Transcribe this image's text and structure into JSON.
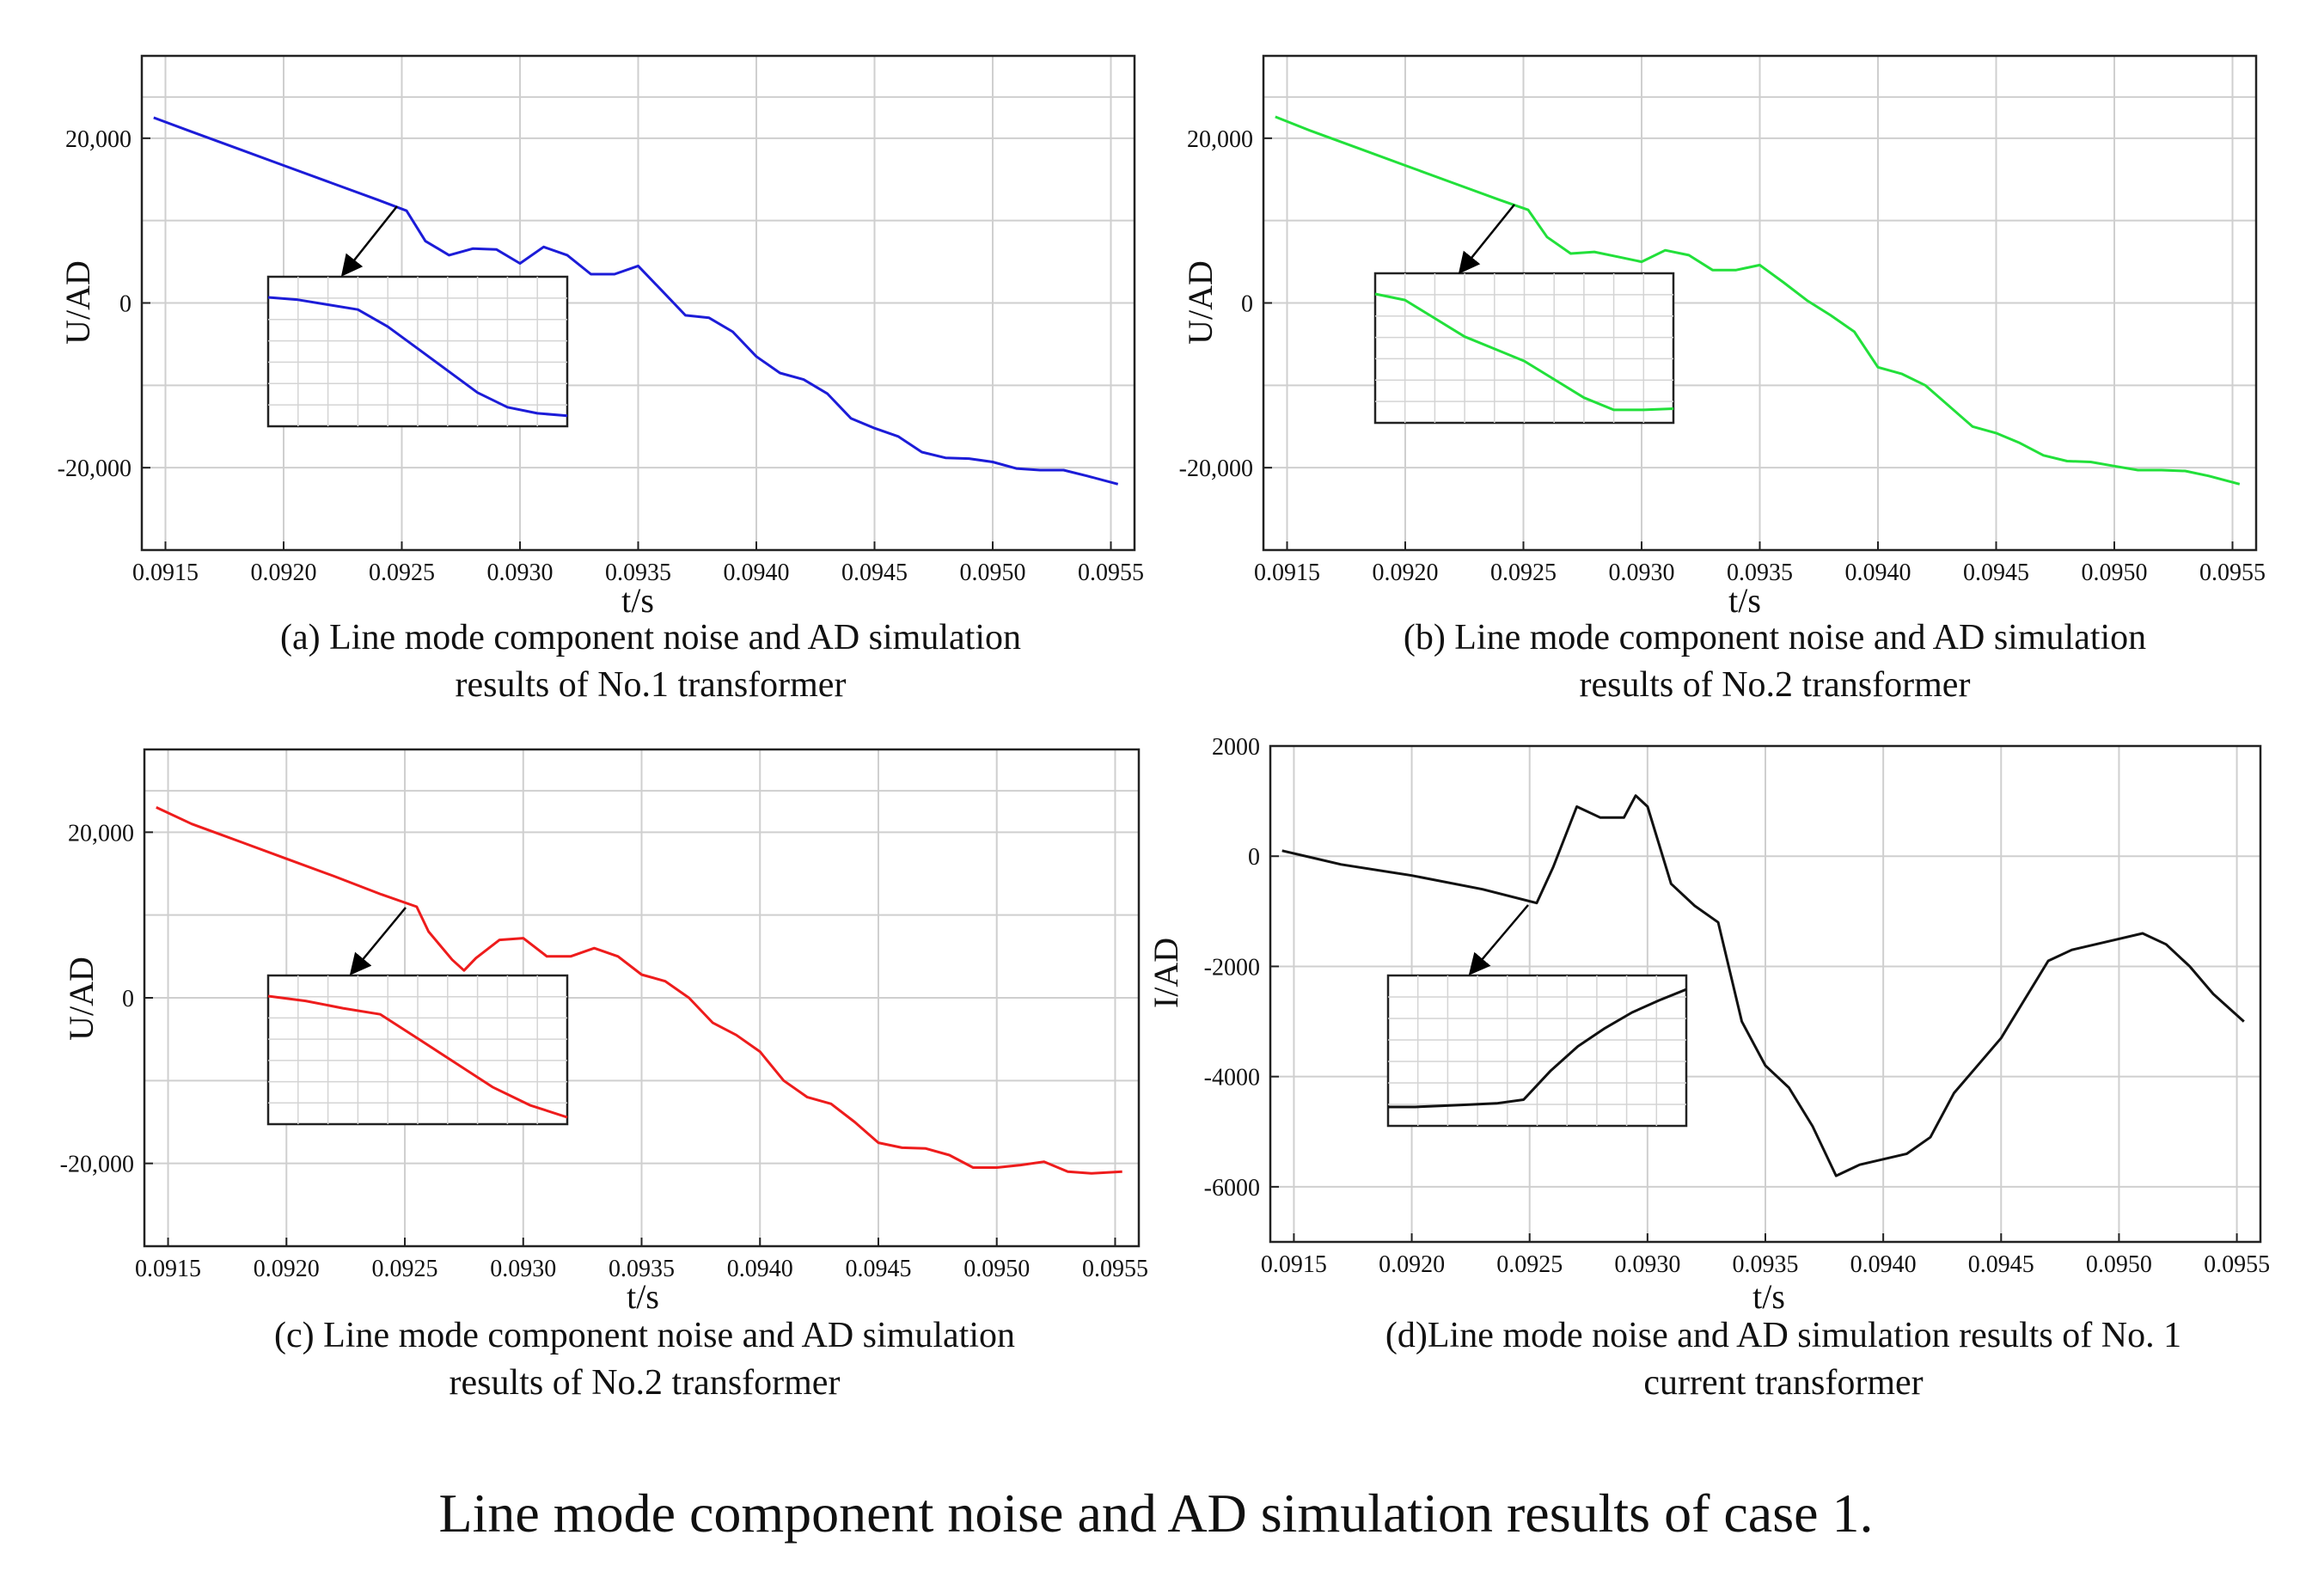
{
  "figure_caption": "Line mode component noise and AD simulation results of case 1.",
  "chart_data": [
    {
      "type": "line",
      "panel": "a",
      "caption_line1": "(a) Line mode component noise and AD simulation",
      "caption_line2": "results of No.1 transformer",
      "xlabel": "t/s",
      "ylabel": "U/AD",
      "xlim": [
        0.0914,
        0.0956
      ],
      "ylim": [
        -30000,
        30000
      ],
      "xticks": [
        0.0915,
        0.092,
        0.0925,
        0.093,
        0.0935,
        0.094,
        0.0945,
        0.095,
        0.0955
      ],
      "xtick_labels": [
        "0.0915",
        "0.0920",
        "0.0925",
        "0.0930",
        "0.0935",
        "0.0940",
        "0.0945",
        "0.0950",
        "0.0955"
      ],
      "yticks": [
        20000,
        0,
        -20000
      ],
      "ytick_labels": [
        "20,000",
        "0",
        "-20,000"
      ],
      "ygrid": [
        25000,
        20000,
        10000,
        0,
        -10000,
        -20000
      ],
      "grid": true,
      "color": "#1c1cd8",
      "inset": true,
      "series": [
        {
          "name": "No.1 transformer",
          "x": [
            0.09145,
            0.0916,
            0.0918,
            0.092,
            0.0922,
            0.0924,
            0.09252,
            0.0926,
            0.0927,
            0.0928,
            0.0929,
            0.093,
            0.0931,
            0.0932,
            0.0933,
            0.0934,
            0.0935,
            0.0936,
            0.0937,
            0.0938,
            0.0939,
            0.094,
            0.0941,
            0.0942,
            0.0943,
            0.0944,
            0.0945,
            0.0946,
            0.0947,
            0.0948,
            0.0949,
            0.095,
            0.0951,
            0.0952,
            0.0953,
            0.0954,
            0.09553
          ],
          "values": [
            22500,
            20900,
            18800,
            16700,
            14600,
            12500,
            11200,
            7500,
            5800,
            6600,
            6500,
            4800,
            6800,
            5800,
            3500,
            3500,
            4500,
            1500,
            -1500,
            -1800,
            -3500,
            -6500,
            -8500,
            -9300,
            -11000,
            -14000,
            -15200,
            -16200,
            -18100,
            -18800,
            -18900,
            -19300,
            -20100,
            -20300,
            -20300,
            -21000,
            -22000
          ]
        }
      ],
      "inset_series": [
        0.0,
        -0.02,
        -0.06,
        -0.1,
        -0.24,
        -0.42,
        -0.6,
        -0.78,
        -0.9,
        -0.95,
        -0.97
      ]
    },
    {
      "type": "line",
      "panel": "b",
      "caption_line1": "(b) Line mode component noise and AD simulation",
      "caption_line2": "results of No.2 transformer",
      "xlabel": "t/s",
      "ylabel": "U/AD",
      "xlim": [
        0.0914,
        0.0956
      ],
      "ylim": [
        -30000,
        30000
      ],
      "xticks": [
        0.0915,
        0.092,
        0.0925,
        0.093,
        0.0935,
        0.094,
        0.0945,
        0.095,
        0.0955
      ],
      "xtick_labels": [
        "0.0915",
        "0.0920",
        "0.0925",
        "0.0930",
        "0.0935",
        "0.0940",
        "0.0945",
        "0.0950",
        "0.0955"
      ],
      "yticks": [
        20000,
        0,
        -20000
      ],
      "ytick_labels": [
        "20,000",
        "0",
        "-20,000"
      ],
      "ygrid": [
        25000,
        20000,
        10000,
        0,
        -10000,
        -20000
      ],
      "grid": true,
      "color": "#22e03a",
      "inset": true,
      "series": [
        {
          "name": "No.2 transformer",
          "x": [
            0.09145,
            0.0916,
            0.0918,
            0.092,
            0.0922,
            0.0924,
            0.09252,
            0.0926,
            0.0927,
            0.0928,
            0.0929,
            0.093,
            0.0931,
            0.0932,
            0.0933,
            0.0934,
            0.0935,
            0.0936,
            0.0937,
            0.0938,
            0.0939,
            0.094,
            0.0941,
            0.0942,
            0.0943,
            0.0944,
            0.0945,
            0.0946,
            0.0947,
            0.0948,
            0.0949,
            0.095,
            0.0951,
            0.0952,
            0.0953,
            0.0954,
            0.09553
          ],
          "values": [
            22600,
            20900,
            18800,
            16700,
            14600,
            12500,
            11300,
            8000,
            6000,
            6200,
            5600,
            5000,
            6400,
            5800,
            4000,
            4000,
            4600,
            2500,
            300,
            -1500,
            -3500,
            -7800,
            -8600,
            -10000,
            -12500,
            -15000,
            -15800,
            -17000,
            -18500,
            -19200,
            -19300,
            -19800,
            -20300,
            -20300,
            -20400,
            -21000,
            -22000
          ]
        }
      ],
      "inset_series": [
        0.0,
        -0.05,
        -0.2,
        -0.35,
        -0.45,
        -0.55,
        -0.7,
        -0.85,
        -0.95,
        -0.95,
        -0.94
      ]
    },
    {
      "type": "line",
      "panel": "c",
      "caption_line1": "(c) Line mode component noise and AD simulation",
      "caption_line2": "results of No.2 transformer",
      "xlabel": "t/s",
      "ylabel": "U/AD",
      "xlim": [
        0.0914,
        0.0956
      ],
      "ylim": [
        -30000,
        30000
      ],
      "xticks": [
        0.0915,
        0.092,
        0.0925,
        0.093,
        0.0935,
        0.094,
        0.0945,
        0.095,
        0.0955
      ],
      "xtick_labels": [
        "0.0915",
        "0.0920",
        "0.0925",
        "0.0930",
        "0.0935",
        "0.0940",
        "0.0945",
        "0.0950",
        "0.0955"
      ],
      "yticks": [
        20000,
        0,
        -20000
      ],
      "ytick_labels": [
        "20,000",
        "0",
        "-20,000"
      ],
      "ygrid": [
        25000,
        20000,
        10000,
        0,
        -10000,
        -20000
      ],
      "grid": true,
      "color": "#ee1c1c",
      "inset": true,
      "series": [
        {
          "name": "No.2 transformer",
          "x": [
            0.09145,
            0.0916,
            0.0918,
            0.092,
            0.0922,
            0.0924,
            0.09255,
            0.0926,
            0.0927,
            0.09275,
            0.0928,
            0.0929,
            0.093,
            0.0931,
            0.0932,
            0.0933,
            0.0934,
            0.0935,
            0.0936,
            0.0937,
            0.0938,
            0.0939,
            0.094,
            0.0941,
            0.0942,
            0.0943,
            0.0944,
            0.0945,
            0.0946,
            0.0947,
            0.0948,
            0.0949,
            0.095,
            0.0951,
            0.0952,
            0.0953,
            0.0954,
            0.09553
          ],
          "values": [
            23000,
            21000,
            18900,
            16800,
            14700,
            12500,
            11000,
            8000,
            4600,
            3300,
            4800,
            7000,
            7200,
            5000,
            5000,
            6000,
            5000,
            2800,
            2000,
            0,
            -3000,
            -4500,
            -6500,
            -10000,
            -12000,
            -12800,
            -15000,
            -17500,
            -18100,
            -18200,
            -19000,
            -20500,
            -20500,
            -20200,
            -19800,
            -21000,
            -21200,
            -21000
          ]
        }
      ],
      "inset_series": [
        0.0,
        -0.04,
        -0.1,
        -0.15,
        -0.35,
        -0.55,
        -0.75,
        -0.9,
        -1.0
      ]
    },
    {
      "type": "line",
      "panel": "d",
      "caption_line1": "(d)Line mode noise and AD simulation results of No. 1",
      "caption_line2": "current transformer",
      "xlabel": "t/s",
      "ylabel": "I/AD",
      "xlim": [
        0.0914,
        0.0956
      ],
      "ylim": [
        -7000,
        2000
      ],
      "xticks": [
        0.0915,
        0.092,
        0.0925,
        0.093,
        0.0935,
        0.094,
        0.0945,
        0.095,
        0.0955
      ],
      "xtick_labels": [
        "0.0915",
        "0.0920",
        "0.0925",
        "0.0930",
        "0.0935",
        "0.0940",
        "0.0945",
        "0.0950",
        "0.0955"
      ],
      "yticks": [
        2000,
        0,
        -2000,
        -4000,
        -6000
      ],
      "ytick_labels": [
        "2000",
        "0",
        "-2000",
        "-4000",
        "-6000"
      ],
      "ygrid": [
        0,
        -2000,
        -4000,
        -6000
      ],
      "grid": true,
      "color": "#111111",
      "inset": true,
      "series": [
        {
          "name": "No. 1 current transformer",
          "x": [
            0.09145,
            0.0917,
            0.092,
            0.0923,
            0.09253,
            0.0926,
            0.0927,
            0.0928,
            0.0929,
            0.09295,
            0.093,
            0.0931,
            0.0932,
            0.0933,
            0.0934,
            0.0935,
            0.0936,
            0.0937,
            0.0938,
            0.0939,
            0.094,
            0.0941,
            0.0942,
            0.0943,
            0.0944,
            0.0945,
            0.0946,
            0.0947,
            0.0948,
            0.0949,
            0.095,
            0.0951,
            0.0952,
            0.0953,
            0.0954,
            0.09553
          ],
          "values": [
            100,
            -150,
            -350,
            -600,
            -850,
            -200,
            900,
            700,
            700,
            1100,
            900,
            -500,
            -900,
            -1200,
            -3000,
            -3800,
            -4200,
            -4900,
            -5800,
            -5600,
            -5500,
            -5400,
            -5100,
            -4300,
            -3800,
            -3300,
            -2600,
            -1900,
            -1700,
            -1600,
            -1500,
            -1400,
            -1600,
            -2000,
            -2500,
            -3000
          ]
        }
      ],
      "inset_series": [
        0.0,
        0.0,
        0.01,
        0.02,
        0.03,
        0.06,
        0.3,
        0.5,
        0.65,
        0.78,
        0.88,
        0.97
      ]
    }
  ]
}
